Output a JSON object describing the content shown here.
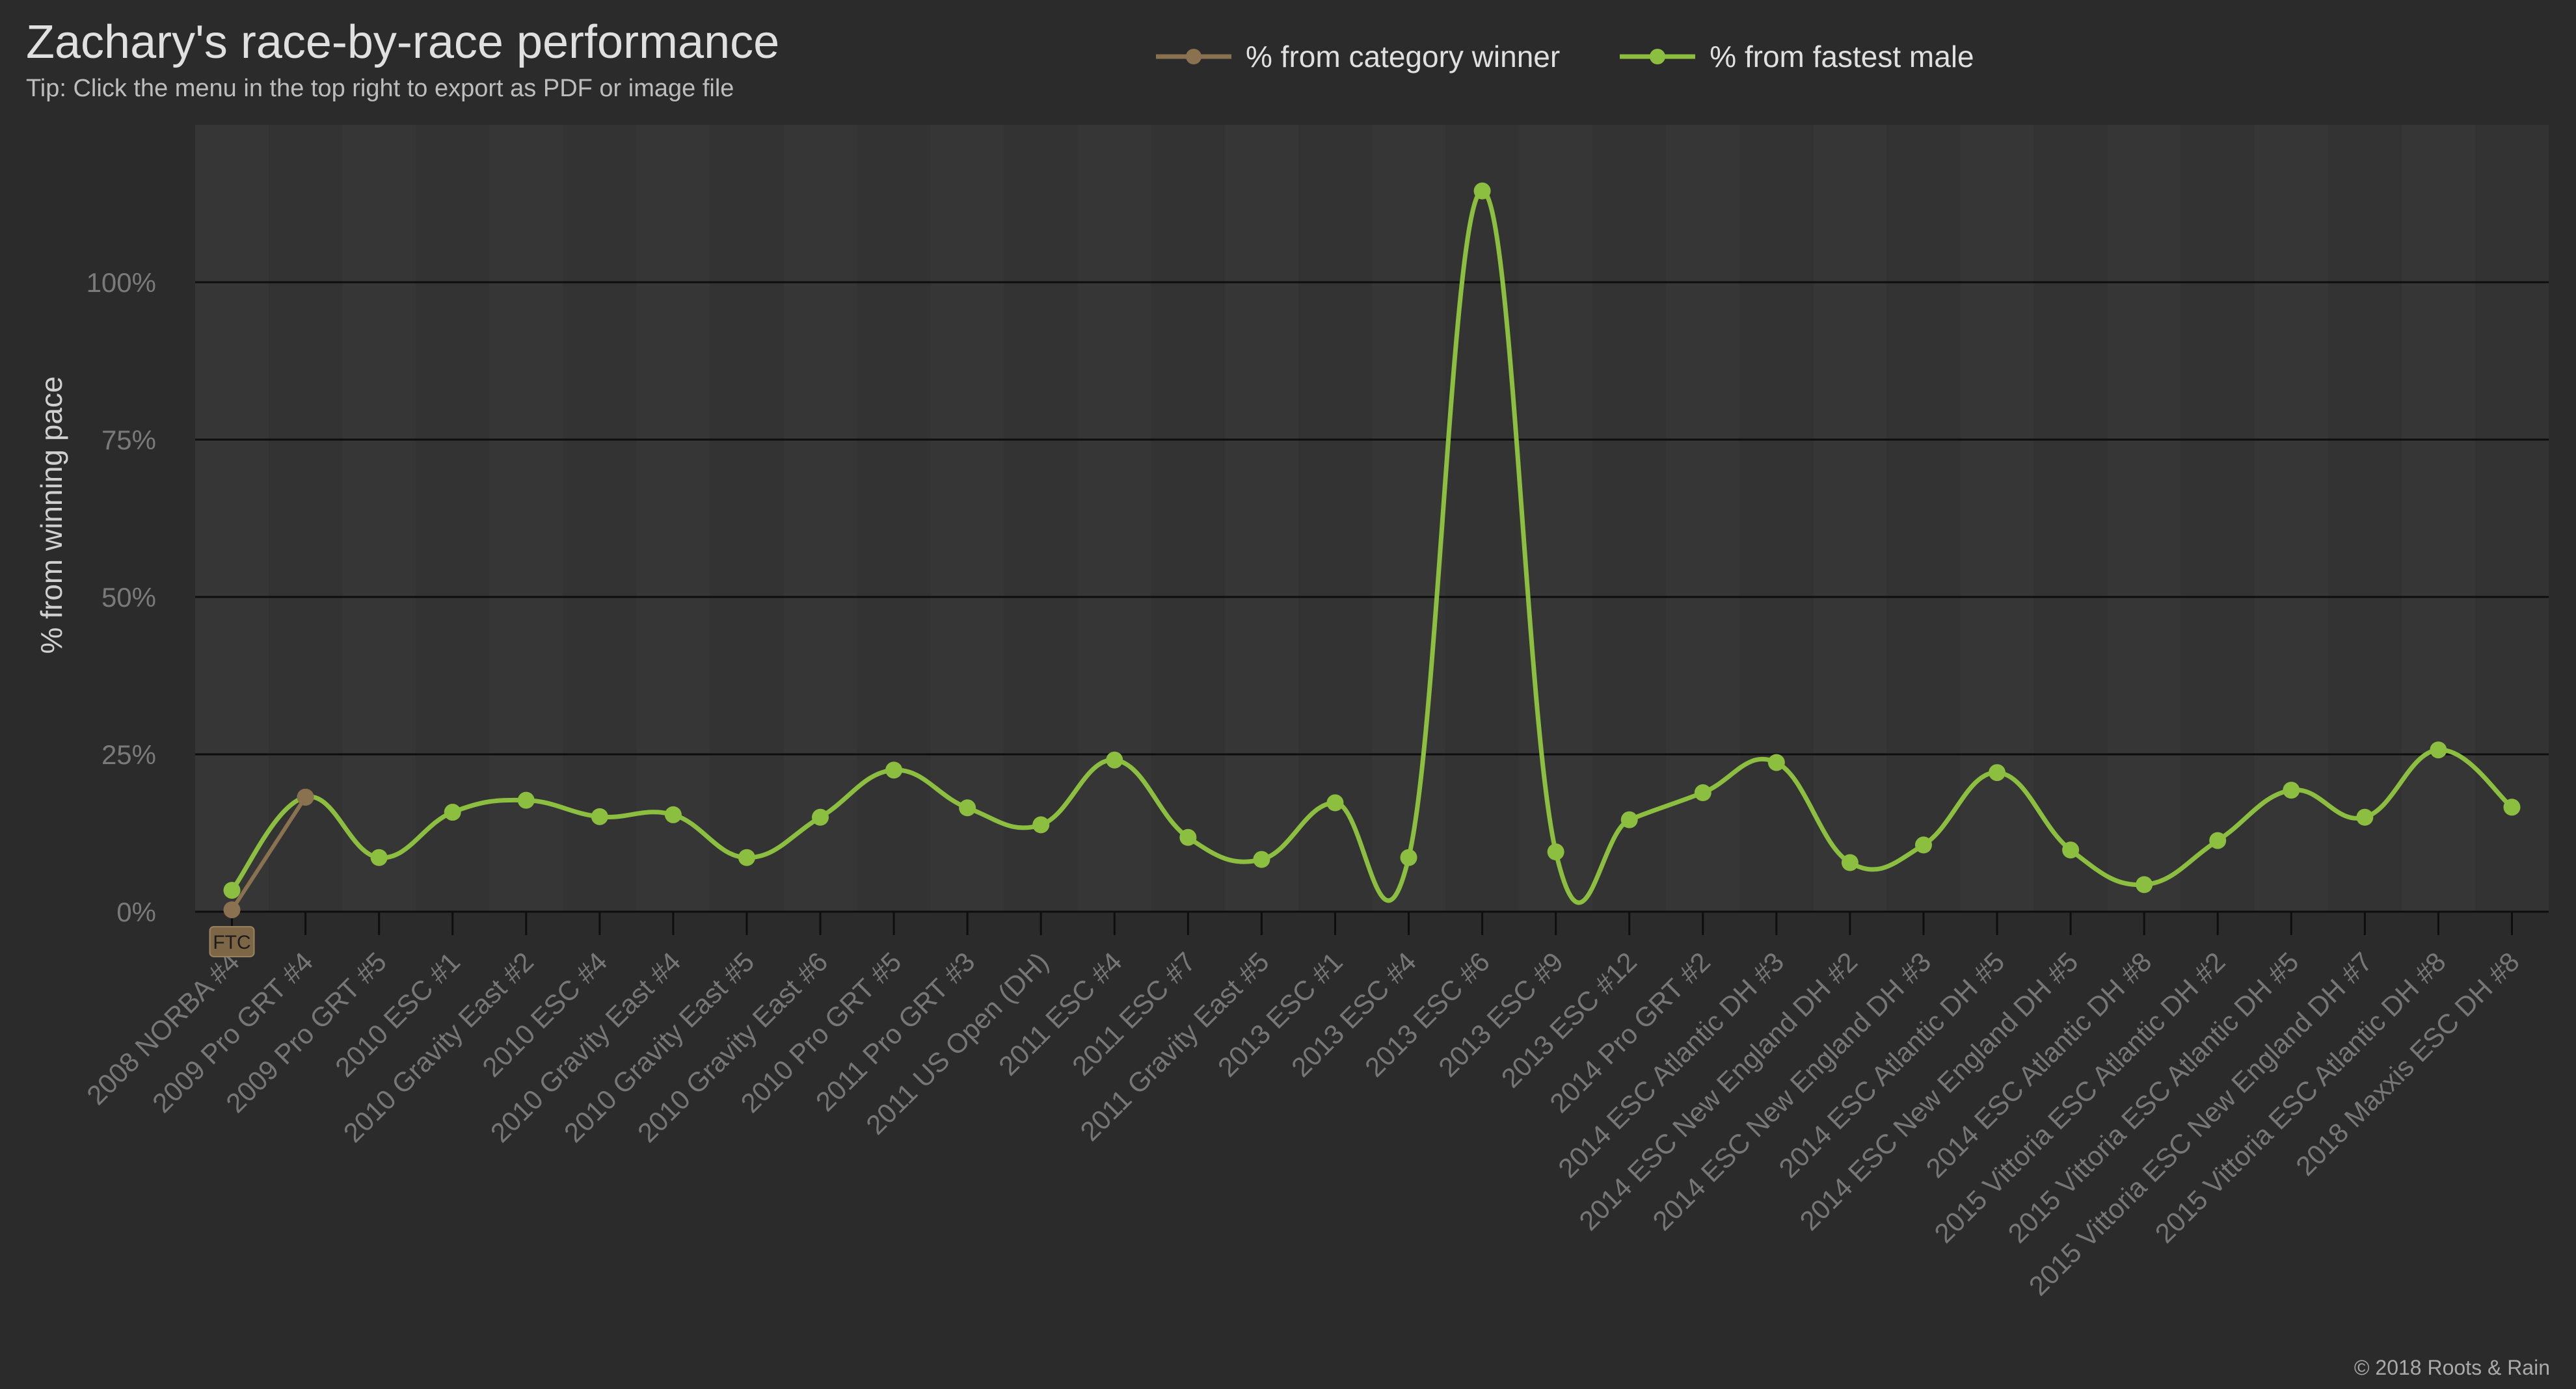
{
  "chart_data": {
    "type": "line",
    "title": "Zachary's race-by-race performance",
    "subtitle": "Tip: Click the menu in the top right to export as PDF or image file",
    "ylabel": "% from winning pace",
    "xlabel": "",
    "ylim": [
      0,
      125
    ],
    "yticks": [
      0,
      25,
      50,
      75,
      100
    ],
    "ytick_suffix": "%",
    "grid": true,
    "legend_position": "top-center",
    "credits": "© 2018 Roots & Rain",
    "categories": [
      "2008 NORBA #4",
      "2009 Pro GRT #4",
      "2009 Pro GRT #5",
      "2010 ESC #1",
      "2010 Gravity East #2",
      "2010 ESC #4",
      "2010 Gravity East #4",
      "2010 Gravity East #5",
      "2010 Gravity East #6",
      "2010 Pro GRT #5",
      "2011 Pro GRT #3",
      "2011 US Open (DH)",
      "2011 ESC #4",
      "2011 ESC #7",
      "2011 Gravity East #5",
      "2013 ESC #1",
      "2013 ESC #4",
      "2013 ESC #6",
      "2013 ESC #9",
      "2013 ESC #12",
      "2014 Pro GRT #2",
      "2014 ESC Atlantic DH #3",
      "2014 ESC New England DH #2",
      "2014 ESC New England DH #3",
      "2014 ESC Atlantic DH #5",
      "2014 ESC New England DH #5",
      "2014 ESC Atlantic DH #8",
      "2015 Vittoria ESC Atlantic DH #2",
      "2015 Vittoria ESC Atlantic DH #5",
      "2015 Vittoria ESC New England DH #7",
      "2015 Vittoria ESC Atlantic DH #8",
      "2018 Maxxis ESC DH #8"
    ],
    "series": [
      {
        "name": "% from category winner",
        "color": "#8a7150",
        "values": [
          0.3,
          18.2,
          null,
          null,
          null,
          null,
          null,
          null,
          null,
          null,
          null,
          null,
          null,
          null,
          null,
          null,
          null,
          null,
          null,
          null,
          null,
          null,
          null,
          null,
          null,
          null,
          null,
          null,
          null,
          null,
          null,
          null
        ],
        "annotations": [
          {
            "index": 0,
            "label": "FTC"
          }
        ]
      },
      {
        "name": "% from fastest male",
        "color": "#8cbf3f",
        "values": [
          3.4,
          18.2,
          8.6,
          15.8,
          17.7,
          15.1,
          15.4,
          8.6,
          15.0,
          22.5,
          16.5,
          13.8,
          24.1,
          11.8,
          8.3,
          17.3,
          8.6,
          114.5,
          9.5,
          14.6,
          18.9,
          23.7,
          7.8,
          10.6,
          22.1,
          9.8,
          4.3,
          11.3,
          19.3,
          15.0,
          25.7,
          16.6
        ]
      }
    ]
  }
}
